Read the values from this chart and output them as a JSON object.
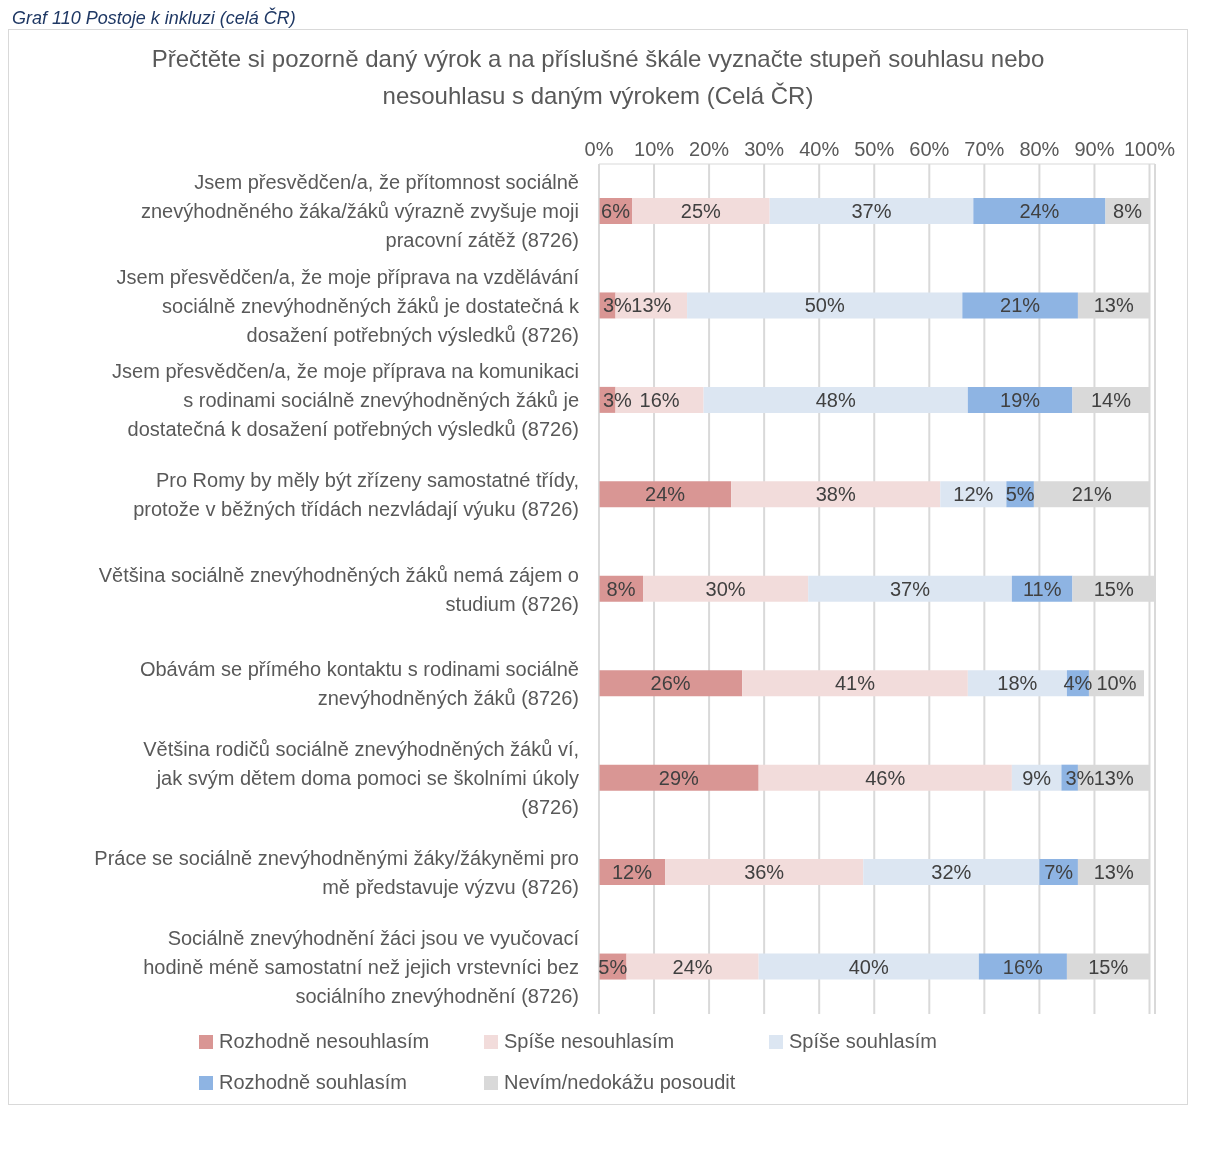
{
  "chart_data": {
    "type": "bar",
    "orientation": "horizontal",
    "stacked": true,
    "title": "Přečtěte si pozorně daný výrok a na příslušné škále vyznačte stupeň souhlasu nebo nesouhlasu s daným výrokem (Celá ČR)",
    "annotations": [
      "Graf 110 Postoje k inkluzi (celá ČR)"
    ],
    "categories": [
      "Jsem přesvědčen/a, že přítomnost sociálně znevýhodněného žáka/žáků výrazně zvyšuje moji pracovní zátěž (8726)",
      "Jsem přesvědčen/a, že moje příprava na vzdělávání sociálně znevýhodněných žáků je dostatečná k dosažení potřebných výsledků (8726)",
      "Jsem přesvědčen/a, že moje příprava na komunikaci s rodinami sociálně znevýhodněných žáků je dostatečná k dosažení potřebných výsledků (8726)",
      "Pro Romy by měly být zřízeny samostatné třídy, protože v běžných třídách nezvládají výuku (8726)",
      "Většina sociálně znevýhodněných žáků nemá zájem o studium (8726)",
      "Obávám se přímého kontaktu s rodinami sociálně znevýhodněných žáků (8726)",
      "Většina rodičů sociálně znevýhodněných žáků ví, jak svým dětem doma pomoci se školními úkoly (8726)",
      "Práce se sociálně znevýhodněnými žáky/žákyněmi pro mě představuje výzvu (8726)",
      "Sociálně znevýhodnění žáci jsou ve vyučovací hodině méně samostatní než jejich vrstevníci bez sociálního znevýhodnění (8726)"
    ],
    "series": [
      {
        "name": "Rozhodně nesouhlasím",
        "color": "#d99694",
        "values": [
          6,
          3,
          3,
          24,
          8,
          26,
          29,
          12,
          5
        ],
        "value_labels": [
          "6%",
          "3%",
          "3%",
          "24%",
          "8%",
          "26%",
          "29%",
          "12%",
          "5%"
        ]
      },
      {
        "name": "Spíše nesouhlasím",
        "color": "#f2dcdb",
        "values": [
          25,
          13,
          16,
          38,
          30,
          41,
          46,
          36,
          24
        ],
        "value_labels": [
          "25%",
          "13%",
          "16%",
          "38%",
          "30%",
          "41%",
          "46%",
          "36%",
          "24%"
        ]
      },
      {
        "name": "Spíše souhlasím",
        "color": "#dce6f2",
        "values": [
          37,
          50,
          48,
          12,
          37,
          18,
          9,
          32,
          40
        ],
        "value_labels": [
          "37%",
          "50%",
          "48%",
          "12%",
          "37%",
          "18%",
          "9%",
          "32%",
          "40%"
        ]
      },
      {
        "name": "Rozhodně souhlasím",
        "color": "#8eb4e3",
        "values": [
          24,
          21,
          19,
          5,
          11,
          4,
          3,
          7,
          16
        ],
        "value_labels": [
          "24%",
          "21%",
          "19%",
          "5%",
          "11%",
          "4%",
          "3%",
          "7%",
          "16%"
        ]
      },
      {
        "name": "Nevím/nedokážu posoudit",
        "color": "#d9d9d9",
        "values": [
          8,
          13,
          14,
          21,
          15,
          10,
          13,
          13,
          15
        ],
        "value_labels": [
          "8%",
          "13%",
          "14%",
          "21%",
          "15%",
          "10%",
          "13%",
          "13%",
          "15%"
        ]
      }
    ],
    "xlim": [
      0,
      101
    ],
    "xticks": [
      {
        "value": 0,
        "label": "0%"
      },
      {
        "value": 10,
        "label": "10%"
      },
      {
        "value": 20,
        "label": "20%"
      },
      {
        "value": 30,
        "label": "30%"
      },
      {
        "value": 40,
        "label": "40%"
      },
      {
        "value": 50,
        "label": "50%"
      },
      {
        "value": 60,
        "label": "60%"
      },
      {
        "value": 70,
        "label": "70%"
      },
      {
        "value": 80,
        "label": "80%"
      },
      {
        "value": 90,
        "label": "90%"
      },
      {
        "value": 100,
        "label": "100%"
      }
    ],
    "grid": "x",
    "legend": "bottom"
  }
}
